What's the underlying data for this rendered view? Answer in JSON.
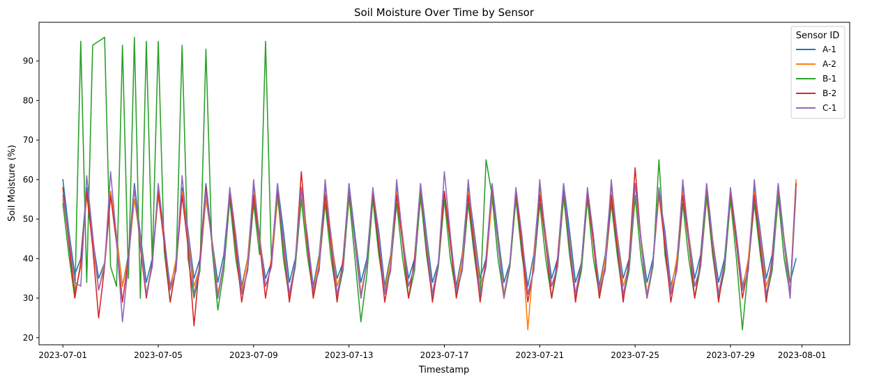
{
  "chart_data": {
    "type": "line",
    "title": "Soil Moisture Over Time by Sensor",
    "xlabel": "Timestamp",
    "ylabel": "Soil Moisture (%)",
    "x_range": [
      "2023-06-30T00:00",
      "2023-08-03T00:00"
    ],
    "xlim": [
      "2023-06-30T00:00",
      "2023-08-03T00:00"
    ],
    "ylim": [
      18.2,
      99.8
    ],
    "x_ticks": [
      "2023-07-01",
      "2023-07-05",
      "2023-07-09",
      "2023-07-13",
      "2023-07-17",
      "2023-07-21",
      "2023-07-25",
      "2023-07-29",
      "2023-08-01"
    ],
    "y_ticks": [
      20,
      30,
      40,
      50,
      60,
      70,
      80,
      90
    ],
    "grid": false,
    "legend": {
      "title": "Sensor ID",
      "placement": "top-right"
    },
    "sampling": "6-hour readings, 2023-07-01 00:00 to 2023-07-31 18:00",
    "series": [
      {
        "name": "A-1",
        "color": "#1f77b4",
        "values": [
          60,
          47,
          36,
          40,
          58,
          45,
          35,
          39,
          57,
          46,
          33,
          41,
          59,
          46,
          34,
          40,
          57,
          45,
          33,
          39,
          58,
          47,
          35,
          40,
          59,
          45,
          34,
          41,
          57,
          46,
          33,
          40,
          58,
          45,
          35,
          39,
          59,
          47,
          34,
          40,
          57,
          46,
          33,
          41,
          58,
          45,
          35,
          39,
          59,
          46,
          34,
          40,
          57,
          47,
          33,
          41,
          58,
          45,
          35,
          40,
          59,
          46,
          34,
          39,
          57,
          45,
          33,
          41,
          58,
          47,
          35,
          40,
          59,
          46,
          34,
          39,
          57,
          45,
          33,
          41,
          58,
          46,
          35,
          40,
          59,
          47,
          34,
          39,
          57,
          45,
          33,
          41,
          58,
          46,
          35,
          40,
          59,
          45,
          34,
          40,
          57,
          47,
          33,
          39,
          58,
          46,
          35,
          41,
          59,
          45,
          34,
          40,
          57,
          46,
          33,
          39,
          58,
          47,
          35,
          41,
          59,
          45,
          34,
          40
        ]
      },
      {
        "name": "A-2",
        "color": "#ff7f0e",
        "values": [
          55,
          45,
          31,
          38,
          56,
          44,
          32,
          39,
          57,
          46,
          33,
          40,
          55,
          45,
          31,
          39,
          56,
          44,
          32,
          40,
          57,
          46,
          33,
          38,
          55,
          45,
          31,
          39,
          56,
          44,
          32,
          40,
          57,
          46,
          33,
          38,
          55,
          45,
          31,
          39,
          56,
          44,
          32,
          40,
          57,
          46,
          33,
          38,
          55,
          45,
          31,
          39,
          56,
          44,
          32,
          40,
          57,
          46,
          33,
          38,
          55,
          45,
          31,
          39,
          56,
          44,
          32,
          40,
          57,
          46,
          33,
          38,
          55,
          45,
          31,
          39,
          56,
          44,
          22,
          40,
          57,
          46,
          33,
          38,
          55,
          45,
          31,
          39,
          56,
          44,
          32,
          40,
          57,
          46,
          33,
          38,
          55,
          45,
          31,
          39,
          56,
          44,
          32,
          40,
          57,
          46,
          33,
          38,
          55,
          45,
          31,
          39,
          56,
          44,
          32,
          40,
          57,
          46,
          33,
          38,
          55,
          45,
          31,
          60
        ]
      },
      {
        "name": "B-1",
        "color": "#2ca02c",
        "values": [
          54,
          41,
          30,
          95,
          34,
          94,
          95,
          96,
          38,
          33,
          94,
          35,
          96,
          30,
          95,
          39,
          95,
          42,
          29,
          38,
          94,
          40,
          30,
          37,
          93,
          43,
          27,
          37,
          55,
          40,
          31,
          37,
          54,
          41,
          95,
          39,
          57,
          40,
          30,
          38,
          55,
          41,
          31,
          38,
          54,
          40,
          30,
          37,
          56,
          40,
          24,
          36,
          55,
          41,
          31,
          38,
          54,
          40,
          30,
          37,
          56,
          41,
          30,
          38,
          55,
          40,
          31,
          37,
          54,
          41,
          30,
          65,
          56,
          40,
          30,
          38,
          55,
          41,
          31,
          37,
          54,
          40,
          30,
          38,
          56,
          41,
          30,
          37,
          55,
          40,
          31,
          38,
          54,
          41,
          30,
          37,
          56,
          40,
          30,
          38,
          65,
          41,
          31,
          37,
          54,
          40,
          30,
          38,
          56,
          41,
          30,
          37,
          55,
          40,
          22,
          38,
          54,
          41,
          30,
          37,
          56,
          40,
          31,
          59
        ]
      },
      {
        "name": "B-2",
        "color": "#d62728",
        "values": [
          58,
          44,
          30,
          39,
          57,
          43,
          25,
          38,
          56,
          44,
          29,
          40,
          58,
          43,
          30,
          39,
          57,
          44,
          29,
          38,
          56,
          43,
          23,
          40,
          58,
          44,
          30,
          39,
          57,
          43,
          29,
          38,
          56,
          44,
          30,
          40,
          58,
          43,
          29,
          39,
          62,
          44,
          30,
          38,
          56,
          43,
          29,
          40,
          58,
          44,
          30,
          39,
          57,
          43,
          29,
          38,
          56,
          44,
          30,
          40,
          58,
          43,
          29,
          39,
          57,
          44,
          30,
          38,
          56,
          43,
          29,
          40,
          58,
          44,
          30,
          39,
          57,
          43,
          29,
          38,
          56,
          44,
          30,
          40,
          58,
          43,
          29,
          39,
          57,
          44,
          30,
          38,
          56,
          43,
          29,
          40,
          63,
          44,
          30,
          39,
          57,
          43,
          29,
          38,
          56,
          44,
          30,
          40,
          58,
          43,
          29,
          39,
          57,
          44,
          30,
          38,
          56,
          43,
          29,
          40,
          58,
          44,
          30,
          59
        ]
      },
      {
        "name": "C-1",
        "color": "#9467bd",
        "values": [
          56,
          46,
          34,
          33,
          61,
          46,
          32,
          38,
          62,
          45,
          24,
          39,
          58,
          44,
          31,
          38,
          59,
          46,
          32,
          37,
          61,
          45,
          31,
          38,
          57,
          44,
          30,
          39,
          58,
          46,
          31,
          37,
          60,
          45,
          33,
          38,
          59,
          44,
          31,
          39,
          58,
          46,
          32,
          37,
          60,
          45,
          31,
          38,
          59,
          44,
          30,
          39,
          58,
          46,
          31,
          37,
          60,
          45,
          33,
          38,
          59,
          44,
          31,
          39,
          62,
          46,
          32,
          37,
          60,
          45,
          31,
          38,
          59,
          44,
          30,
          39,
          58,
          46,
          31,
          37,
          60,
          45,
          33,
          38,
          59,
          44,
          31,
          39,
          58,
          46,
          32,
          37,
          60,
          45,
          31,
          38,
          59,
          44,
          30,
          39,
          58,
          46,
          31,
          37,
          60,
          45,
          33,
          38,
          59,
          44,
          31,
          39,
          58,
          46,
          32,
          37,
          60,
          45,
          31,
          38,
          59,
          44,
          30,
          57
        ]
      }
    ]
  }
}
